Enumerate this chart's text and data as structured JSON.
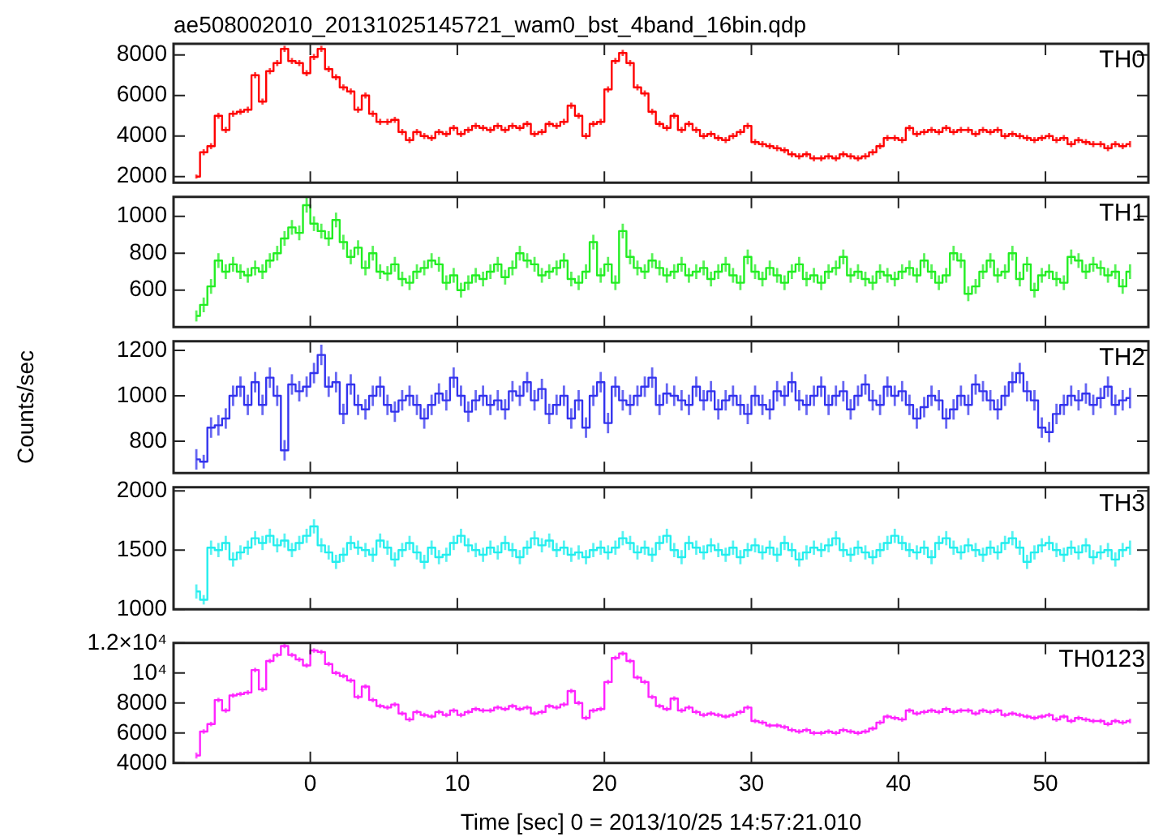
{
  "chart_data": [
    {
      "type": "step",
      "title": "ae508002010_20131025145721_wam0_bst_4band_16bin.qdp",
      "xlim": [
        -9.3,
        57
      ],
      "xticks": [
        0,
        10,
        20,
        30,
        40,
        50
      ],
      "ylim": [
        1700,
        8550
      ],
      "yticks": [
        2000,
        4000,
        6000,
        8000
      ],
      "tick_labels": "y",
      "x": [
        -7.75,
        -7.25,
        -6.75,
        -6.25,
        -5.75,
        -5.25,
        -4.75,
        -4.25,
        -3.75,
        -3.25,
        -2.75,
        -2.25,
        -1.75,
        -1.25,
        -0.75,
        -0.25,
        0.25,
        0.75,
        1.25,
        1.75,
        2.25,
        2.75,
        3.25,
        3.75,
        4.25,
        4.75,
        5.25,
        5.75,
        6.25,
        6.75,
        7.25,
        7.75,
        8.25,
        8.75,
        9.25,
        9.75,
        10.25,
        10.75,
        11.25,
        11.75,
        12.25,
        12.75,
        13.25,
        13.75,
        14.25,
        14.75,
        15.25,
        15.75,
        16.25,
        16.75,
        17.25,
        17.75,
        18.25,
        18.75,
        19.25,
        19.75,
        20.25,
        20.75,
        21.25,
        21.75,
        22.25,
        22.75,
        23.25,
        23.75,
        24.25,
        24.75,
        25.25,
        25.75,
        26.25,
        26.75,
        27.25,
        27.75,
        28.25,
        28.75,
        29.25,
        29.75,
        30.25,
        30.75,
        31.25,
        31.75,
        32.25,
        32.75,
        33.25,
        33.75,
        34.25,
        34.75,
        35.25,
        35.75,
        36.25,
        36.75,
        37.25,
        37.75,
        38.25,
        38.75,
        39.25,
        39.75,
        40.25,
        40.75,
        41.25,
        41.75,
        42.25,
        42.75,
        43.25,
        43.75,
        44.25,
        44.75,
        45.25,
        45.75,
        46.25,
        46.75,
        47.25,
        47.75,
        48.25,
        48.75,
        49.25,
        49.75,
        50.25,
        50.75,
        51.25,
        51.75,
        52.25,
        52.75,
        53.25,
        53.75,
        54.25,
        54.75,
        55.25,
        55.75
      ],
      "series": [
        {
          "name": "TH0",
          "color": "#ff0000",
          "values": [
            2000,
            3200,
            3500,
            5000,
            4300,
            5100,
            5200,
            5300,
            7000,
            5700,
            7200,
            7600,
            8300,
            7700,
            7600,
            7100,
            7900,
            8300,
            7300,
            6900,
            6400,
            6200,
            5300,
            6000,
            5100,
            4700,
            4700,
            4800,
            4200,
            3800,
            4200,
            4000,
            3900,
            4200,
            4100,
            4400,
            4100,
            4300,
            4500,
            4400,
            4300,
            4500,
            4300,
            4500,
            4400,
            4600,
            4100,
            4200,
            4600,
            4500,
            4700,
            5500,
            5000,
            4000,
            4600,
            4700,
            6300,
            7700,
            8100,
            7600,
            6400,
            6100,
            5200,
            4600,
            4400,
            5000,
            4300,
            4600,
            4300,
            4000,
            4100,
            3900,
            3800,
            4000,
            4200,
            4500,
            3700,
            3600,
            3500,
            3400,
            3300,
            3100,
            3000,
            3100,
            2900,
            2900,
            3000,
            2900,
            3100,
            3000,
            2900,
            3000,
            3200,
            3500,
            3900,
            3900,
            3800,
            4400,
            4100,
            4200,
            4300,
            4200,
            4400,
            4200,
            4300,
            4300,
            4100,
            4300,
            4200,
            4300,
            4000,
            4100,
            4000,
            3900,
            3800,
            3900,
            4000,
            3800,
            3900,
            3600,
            3800,
            3700,
            3600,
            3600,
            3400,
            3600,
            3500,
            3600
          ],
          "errors": [
            100,
            150,
            150,
            150,
            150,
            150,
            150,
            150,
            150,
            150,
            150,
            150,
            150,
            150,
            150,
            150,
            150,
            150,
            150,
            150,
            150,
            150,
            150,
            150,
            150,
            150,
            150,
            150,
            150,
            150,
            150,
            150,
            150,
            150,
            150,
            150,
            150,
            150,
            150,
            150,
            150,
            150,
            150,
            150,
            150,
            150,
            150,
            150,
            150,
            150,
            150,
            150,
            150,
            150,
            150,
            150,
            150,
            150,
            150,
            150,
            150,
            150,
            150,
            150,
            150,
            150,
            150,
            150,
            150,
            150,
            150,
            150,
            150,
            150,
            150,
            150,
            150,
            150,
            150,
            150,
            150,
            150,
            150,
            150,
            150,
            150,
            150,
            150,
            150,
            150,
            150,
            150,
            150,
            150,
            150,
            150,
            150,
            150,
            150,
            150,
            150,
            150,
            150,
            150,
            150,
            150,
            150,
            150,
            150,
            150,
            150,
            150,
            150,
            150,
            150,
            150,
            150,
            150,
            150,
            150,
            150,
            150,
            150,
            150,
            150,
            150,
            150,
            150
          ]
        }
      ]
    },
    {
      "type": "step",
      "xlim": [
        -9.3,
        57
      ],
      "xticks": [
        0,
        10,
        20,
        30,
        40,
        50
      ],
      "ylim": [
        400,
        1105
      ],
      "yticks": [
        600,
        800,
        1000
      ],
      "tick_labels": "y",
      "x": [
        -7.75,
        -7.25,
        -6.75,
        -6.25,
        -5.75,
        -5.25,
        -4.75,
        -4.25,
        -3.75,
        -3.25,
        -2.75,
        -2.25,
        -1.75,
        -1.25,
        -0.75,
        -0.25,
        0.25,
        0.75,
        1.25,
        1.75,
        2.25,
        2.75,
        3.25,
        3.75,
        4.25,
        4.75,
        5.25,
        5.75,
        6.25,
        6.75,
        7.25,
        7.75,
        8.25,
        8.75,
        9.25,
        9.75,
        10.25,
        10.75,
        11.25,
        11.75,
        12.25,
        12.75,
        13.25,
        13.75,
        14.25,
        14.75,
        15.25,
        15.75,
        16.25,
        16.75,
        17.25,
        17.75,
        18.25,
        18.75,
        19.25,
        19.75,
        20.25,
        20.75,
        21.25,
        21.75,
        22.25,
        22.75,
        23.25,
        23.75,
        24.25,
        24.75,
        25.25,
        25.75,
        26.25,
        26.75,
        27.25,
        27.75,
        28.25,
        28.75,
        29.25,
        29.75,
        30.25,
        30.75,
        31.25,
        31.75,
        32.25,
        32.75,
        33.25,
        33.75,
        34.25,
        34.75,
        35.25,
        35.75,
        36.25,
        36.75,
        37.25,
        37.75,
        38.25,
        38.75,
        39.25,
        39.75,
        40.25,
        40.75,
        41.25,
        41.75,
        42.25,
        42.75,
        43.25,
        43.75,
        44.25,
        44.75,
        45.25,
        45.75,
        46.25,
        46.75,
        47.25,
        47.75,
        48.25,
        48.75,
        49.25,
        49.75,
        50.25,
        50.75,
        51.25,
        51.75,
        52.25,
        52.75,
        53.25,
        53.75,
        54.25,
        54.75,
        55.25,
        55.75
      ],
      "series": [
        {
          "name": "TH1",
          "color": "#22ee22",
          "values": [
            460,
            520,
            620,
            760,
            700,
            740,
            700,
            680,
            720,
            700,
            760,
            800,
            880,
            940,
            910,
            1060,
            960,
            920,
            880,
            980,
            860,
            780,
            830,
            720,
            800,
            700,
            690,
            740,
            660,
            640,
            700,
            720,
            760,
            740,
            640,
            680,
            600,
            640,
            680,
            660,
            700,
            740,
            670,
            720,
            800,
            760,
            740,
            680,
            700,
            720,
            760,
            660,
            640,
            700,
            860,
            680,
            740,
            640,
            920,
            780,
            720,
            700,
            760,
            720,
            680,
            700,
            740,
            680,
            700,
            720,
            660,
            700,
            740,
            680,
            640,
            780,
            700,
            660,
            720,
            680,
            640,
            700,
            740,
            660,
            680,
            640,
            700,
            720,
            780,
            680,
            700,
            660,
            640,
            700,
            680,
            660,
            700,
            720,
            680,
            760,
            700,
            640,
            680,
            800,
            760,
            580,
            620,
            700,
            760,
            680,
            700,
            800,
            660,
            740,
            600,
            680,
            700,
            660,
            640,
            780,
            760,
            700,
            740,
            720,
            680,
            700,
            620,
            700
          ],
          "errors": [
            30,
            40,
            40,
            40,
            40,
            40,
            40,
            40,
            40,
            40,
            40,
            40,
            40,
            40,
            40,
            40,
            40,
            40,
            40,
            40,
            40,
            40,
            40,
            40,
            40,
            40,
            40,
            40,
            40,
            40,
            40,
            40,
            40,
            40,
            40,
            40,
            40,
            40,
            40,
            40,
            40,
            40,
            40,
            40,
            40,
            40,
            40,
            40,
            40,
            40,
            40,
            40,
            40,
            40,
            40,
            40,
            40,
            40,
            40,
            40,
            40,
            40,
            40,
            40,
            40,
            40,
            40,
            40,
            40,
            40,
            40,
            40,
            40,
            40,
            40,
            40,
            40,
            40,
            40,
            40,
            40,
            40,
            40,
            40,
            40,
            40,
            40,
            40,
            40,
            40,
            40,
            40,
            40,
            40,
            40,
            40,
            40,
            40,
            40,
            40,
            40,
            40,
            40,
            40,
            40,
            40,
            40,
            40,
            40,
            40,
            40,
            40,
            40,
            40,
            40,
            40,
            40,
            40,
            40,
            40,
            40,
            40,
            40,
            40,
            40,
            40,
            40,
            40
          ]
        }
      ]
    },
    {
      "type": "step",
      "ylabel": "Counts/sec",
      "xlim": [
        -9.3,
        57
      ],
      "xticks": [
        0,
        10,
        20,
        30,
        40,
        50
      ],
      "ylim": [
        660,
        1240
      ],
      "yticks": [
        800,
        1000,
        1200
      ],
      "tick_labels": "y",
      "x": [
        -7.75,
        -7.25,
        -6.75,
        -6.25,
        -5.75,
        -5.25,
        -4.75,
        -4.25,
        -3.75,
        -3.25,
        -2.75,
        -2.25,
        -1.75,
        -1.25,
        -0.75,
        -0.25,
        0.25,
        0.75,
        1.25,
        1.75,
        2.25,
        2.75,
        3.25,
        3.75,
        4.25,
        4.75,
        5.25,
        5.75,
        6.25,
        6.75,
        7.25,
        7.75,
        8.25,
        8.75,
        9.25,
        9.75,
        10.25,
        10.75,
        11.25,
        11.75,
        12.25,
        12.75,
        13.25,
        13.75,
        14.25,
        14.75,
        15.25,
        15.75,
        16.25,
        16.75,
        17.25,
        17.75,
        18.25,
        18.75,
        19.25,
        19.75,
        20.25,
        20.75,
        21.25,
        21.75,
        22.25,
        22.75,
        23.25,
        23.75,
        24.25,
        24.75,
        25.25,
        25.75,
        26.25,
        26.75,
        27.25,
        27.75,
        28.25,
        28.75,
        29.25,
        29.75,
        30.25,
        30.75,
        31.25,
        31.75,
        32.25,
        32.75,
        33.25,
        33.75,
        34.25,
        34.75,
        35.25,
        35.75,
        36.25,
        36.75,
        37.25,
        37.75,
        38.25,
        38.75,
        39.25,
        39.75,
        40.25,
        40.75,
        41.25,
        41.75,
        42.25,
        42.75,
        43.25,
        43.75,
        44.25,
        44.75,
        45.25,
        45.75,
        46.25,
        46.75,
        47.25,
        47.75,
        48.25,
        48.75,
        49.25,
        49.75,
        50.25,
        50.75,
        51.25,
        51.75,
        52.25,
        52.75,
        53.25,
        53.75,
        54.25,
        54.75,
        55.25,
        55.75
      ],
      "series": [
        {
          "name": "TH2",
          "color": "#3333ee",
          "values": [
            720,
            710,
            860,
            870,
            900,
            1000,
            1040,
            960,
            1060,
            960,
            1080,
            1000,
            760,
            1050,
            1020,
            1040,
            1100,
            1180,
            1040,
            1060,
            920,
            1050,
            960,
            940,
            1000,
            1040,
            960,
            930,
            980,
            1000,
            960,
            900,
            960,
            1010,
            980,
            1080,
            1000,
            930,
            980,
            1000,
            960,
            980,
            940,
            1020,
            1000,
            1060,
            980,
            1030,
            920,
            960,
            1000,
            900,
            980,
            860,
            1000,
            1060,
            880,
            1040,
            980,
            960,
            1000,
            1040,
            1080,
            960,
            1010,
            1000,
            980,
            960,
            1040,
            980,
            1020,
            940,
            980,
            1000,
            960,
            920,
            1000,
            960,
            940,
            1020,
            1000,
            1060,
            980,
            960,
            1000,
            1040,
            960,
            1000,
            1020,
            940,
            1000,
            1050,
            980,
            960,
            1040,
            1000,
            1020,
            960,
            900,
            950,
            1000,
            980,
            900,
            940,
            1000,
            960,
            1050,
            1020,
            980,
            940,
            1000,
            1060,
            1100,
            1020,
            980,
            860,
            840,
            920,
            960,
            1000,
            980,
            1010,
            960,
            990,
            1040,
            960,
            980,
            990
          ],
          "errors": [
            45,
            30,
            45,
            45,
            45,
            45,
            45,
            45,
            45,
            45,
            45,
            45,
            45,
            45,
            45,
            45,
            45,
            45,
            45,
            45,
            45,
            45,
            45,
            45,
            45,
            45,
            45,
            45,
            45,
            45,
            45,
            45,
            45,
            45,
            45,
            45,
            45,
            45,
            45,
            45,
            45,
            45,
            45,
            45,
            45,
            45,
            45,
            45,
            45,
            45,
            45,
            45,
            45,
            45,
            45,
            45,
            45,
            45,
            45,
            45,
            45,
            45,
            45,
            45,
            45,
            45,
            45,
            45,
            45,
            45,
            45,
            45,
            45,
            45,
            45,
            45,
            45,
            45,
            45,
            45,
            45,
            45,
            45,
            45,
            45,
            45,
            45,
            45,
            45,
            45,
            45,
            45,
            45,
            45,
            45,
            45,
            45,
            45,
            45,
            45,
            45,
            45,
            45,
            45,
            45,
            45,
            45,
            45,
            45,
            45,
            45,
            45,
            45,
            45,
            45,
            45,
            45,
            45,
            45,
            45,
            45,
            45,
            45,
            45,
            45,
            45,
            45,
            45
          ]
        }
      ]
    },
    {
      "type": "step",
      "xlim": [
        -9.3,
        57
      ],
      "xticks": [
        0,
        10,
        20,
        30,
        40,
        50
      ],
      "ylim": [
        1000,
        2030
      ],
      "yticks": [
        1000,
        1500,
        2000
      ],
      "tick_labels": "y",
      "x": [
        -7.75,
        -7.25,
        -6.75,
        -6.25,
        -5.75,
        -5.25,
        -4.75,
        -4.25,
        -3.75,
        -3.25,
        -2.75,
        -2.25,
        -1.75,
        -1.25,
        -0.75,
        -0.25,
        0.25,
        0.75,
        1.25,
        1.75,
        2.25,
        2.75,
        3.25,
        3.75,
        4.25,
        4.75,
        5.25,
        5.75,
        6.25,
        6.75,
        7.25,
        7.75,
        8.25,
        8.75,
        9.25,
        9.75,
        10.25,
        10.75,
        11.25,
        11.75,
        12.25,
        12.75,
        13.25,
        13.75,
        14.25,
        14.75,
        15.25,
        15.75,
        16.25,
        16.75,
        17.25,
        17.75,
        18.25,
        18.75,
        19.25,
        19.75,
        20.25,
        20.75,
        21.25,
        21.75,
        22.25,
        22.75,
        23.25,
        23.75,
        24.25,
        24.75,
        25.25,
        25.75,
        26.25,
        26.75,
        27.25,
        27.75,
        28.25,
        28.75,
        29.25,
        29.75,
        30.25,
        30.75,
        31.25,
        31.75,
        32.25,
        32.75,
        33.25,
        33.75,
        34.25,
        34.75,
        35.25,
        35.75,
        36.25,
        36.75,
        37.25,
        37.75,
        38.25,
        38.75,
        39.25,
        39.75,
        40.25,
        40.75,
        41.25,
        41.75,
        42.25,
        42.75,
        43.25,
        43.75,
        44.25,
        44.75,
        45.25,
        45.75,
        46.25,
        46.75,
        47.25,
        47.75,
        48.25,
        48.75,
        49.25,
        49.75,
        50.25,
        50.75,
        51.25,
        51.75,
        52.25,
        52.75,
        53.25,
        53.75,
        54.25,
        54.75,
        55.25,
        55.75
      ],
      "series": [
        {
          "name": "TH3",
          "color": "#22eeee",
          "values": [
            1150,
            1080,
            1520,
            1500,
            1560,
            1420,
            1480,
            1520,
            1600,
            1560,
            1620,
            1540,
            1580,
            1500,
            1560,
            1620,
            1700,
            1540,
            1480,
            1400,
            1460,
            1560,
            1520,
            1500,
            1460,
            1580,
            1520,
            1420,
            1500,
            1560,
            1480,
            1400,
            1520,
            1440,
            1460,
            1560,
            1620,
            1540,
            1500,
            1460,
            1520,
            1480,
            1560,
            1500,
            1440,
            1520,
            1600,
            1540,
            1580,
            1500,
            1520,
            1460,
            1480,
            1440,
            1500,
            1520,
            1480,
            1520,
            1600,
            1560,
            1480,
            1520,
            1460,
            1560,
            1620,
            1500,
            1440,
            1560,
            1520,
            1480,
            1540,
            1500,
            1460,
            1520,
            1440,
            1500,
            1540,
            1480,
            1520,
            1460,
            1560,
            1500,
            1420,
            1480,
            1520,
            1500,
            1540,
            1600,
            1500,
            1460,
            1520,
            1480,
            1440,
            1500,
            1560,
            1620,
            1560,
            1500,
            1480,
            1520,
            1440,
            1560,
            1600,
            1520,
            1480,
            1540,
            1500,
            1460,
            1520,
            1480,
            1560,
            1600,
            1520,
            1400,
            1480,
            1540,
            1560,
            1500,
            1460,
            1520,
            1480,
            1540,
            1440,
            1480,
            1500,
            1420,
            1500,
            1520
          ],
          "errors": [
            60,
            40,
            60,
            60,
            60,
            60,
            60,
            60,
            60,
            60,
            60,
            60,
            60,
            60,
            60,
            60,
            60,
            60,
            60,
            60,
            60,
            60,
            60,
            60,
            60,
            60,
            60,
            60,
            60,
            60,
            60,
            60,
            60,
            60,
            60,
            60,
            60,
            60,
            60,
            60,
            60,
            60,
            60,
            60,
            60,
            60,
            60,
            60,
            60,
            60,
            60,
            60,
            60,
            60,
            60,
            60,
            60,
            60,
            60,
            60,
            60,
            60,
            60,
            60,
            60,
            60,
            60,
            60,
            60,
            60,
            60,
            60,
            60,
            60,
            60,
            60,
            60,
            60,
            60,
            60,
            60,
            60,
            60,
            60,
            60,
            60,
            60,
            60,
            60,
            60,
            60,
            60,
            60,
            60,
            60,
            60,
            60,
            60,
            60,
            60,
            60,
            60,
            60,
            60,
            60,
            60,
            60,
            60,
            60,
            60,
            60,
            60,
            60,
            60,
            60,
            60,
            60,
            60,
            60,
            60,
            60,
            60,
            60,
            60,
            60,
            60,
            60,
            60
          ]
        }
      ]
    },
    {
      "type": "step",
      "xlabel": "Time [sec] 0 = 2013/10/25 14:57:21.010",
      "xlim": [
        -9.3,
        57
      ],
      "xticks": [
        0,
        10,
        20,
        30,
        40,
        50
      ],
      "ylim": [
        4000,
        12000
      ],
      "yticks": [
        4000,
        6000,
        8000,
        {
          "value": 10000,
          "label": "10⁴"
        },
        {
          "value": 12000,
          "label": "1.2×10⁴"
        }
      ],
      "x": [
        -7.75,
        -7.25,
        -6.75,
        -6.25,
        -5.75,
        -5.25,
        -4.75,
        -4.25,
        -3.75,
        -3.25,
        -2.75,
        -2.25,
        -1.75,
        -1.25,
        -0.75,
        -0.25,
        0.25,
        0.75,
        1.25,
        1.75,
        2.25,
        2.75,
        3.25,
        3.75,
        4.25,
        4.75,
        5.25,
        5.75,
        6.25,
        6.75,
        7.25,
        7.75,
        8.25,
        8.75,
        9.25,
        9.75,
        10.25,
        10.75,
        11.25,
        11.75,
        12.25,
        12.75,
        13.25,
        13.75,
        14.25,
        14.75,
        15.25,
        15.75,
        16.25,
        16.75,
        17.25,
        17.75,
        18.25,
        18.75,
        19.25,
        19.75,
        20.25,
        20.75,
        21.25,
        21.75,
        22.25,
        22.75,
        23.25,
        23.75,
        24.25,
        24.75,
        25.25,
        25.75,
        26.25,
        26.75,
        27.25,
        27.75,
        28.25,
        28.75,
        29.25,
        29.75,
        30.25,
        30.75,
        31.25,
        31.75,
        32.25,
        32.75,
        33.25,
        33.75,
        34.25,
        34.75,
        35.25,
        35.75,
        36.25,
        36.75,
        37.25,
        37.75,
        38.25,
        38.75,
        39.25,
        39.75,
        40.25,
        40.75,
        41.25,
        41.75,
        42.25,
        42.75,
        43.25,
        43.75,
        44.25,
        44.75,
        45.25,
        45.75,
        46.25,
        46.75,
        47.25,
        47.75,
        48.25,
        48.75,
        49.25,
        49.75,
        50.25,
        50.75,
        51.25,
        51.75,
        52.25,
        52.75,
        53.25,
        53.75,
        54.25,
        54.75,
        55.25,
        55.75
      ],
      "series": [
        {
          "name": "TH0123",
          "color": "#ff22ff",
          "values": [
            4500,
            6100,
            6600,
            8200,
            7500,
            8500,
            8600,
            8700,
            10200,
            8900,
            10800,
            11200,
            11800,
            11200,
            10900,
            10500,
            11500,
            11400,
            10600,
            10000,
            9800,
            9500,
            8400,
            9100,
            8200,
            7800,
            7700,
            7900,
            7300,
            6900,
            7400,
            7200,
            7100,
            7400,
            7200,
            7500,
            7200,
            7400,
            7600,
            7500,
            7500,
            7700,
            7600,
            7800,
            7600,
            7700,
            7300,
            7400,
            7800,
            7700,
            7900,
            8800,
            8000,
            7000,
            7500,
            7600,
            9400,
            11000,
            11300,
            10800,
            9700,
            9400,
            8400,
            7800,
            7600,
            8300,
            7500,
            7700,
            7400,
            7200,
            7300,
            7200,
            7100,
            7200,
            7400,
            7700,
            6800,
            6700,
            6500,
            6500,
            6400,
            6200,
            6100,
            6200,
            6000,
            6000,
            6100,
            6000,
            6200,
            6100,
            6000,
            6100,
            6300,
            6700,
            7100,
            7000,
            6900,
            7500,
            7300,
            7400,
            7500,
            7400,
            7600,
            7400,
            7500,
            7500,
            7300,
            7500,
            7400,
            7500,
            7200,
            7300,
            7200,
            7100,
            7000,
            7100,
            7200,
            6900,
            7100,
            6800,
            7000,
            6900,
            6800,
            6800,
            6600,
            6800,
            6700,
            6800
          ],
          "errors": [
            200,
            150,
            150,
            150,
            150,
            150,
            150,
            150,
            150,
            150,
            150,
            150,
            150,
            150,
            150,
            150,
            150,
            150,
            150,
            150,
            150,
            150,
            150,
            150,
            150,
            150,
            150,
            150,
            150,
            150,
            150,
            150,
            150,
            150,
            150,
            150,
            150,
            150,
            150,
            150,
            150,
            150,
            150,
            150,
            150,
            150,
            150,
            150,
            150,
            150,
            150,
            150,
            150,
            150,
            150,
            150,
            150,
            150,
            150,
            150,
            150,
            150,
            150,
            150,
            150,
            150,
            150,
            150,
            150,
            150,
            150,
            150,
            150,
            150,
            150,
            150,
            150,
            150,
            150,
            150,
            150,
            150,
            150,
            150,
            150,
            150,
            150,
            150,
            150,
            150,
            150,
            150,
            150,
            150,
            150,
            150,
            150,
            150,
            150,
            150,
            150,
            150,
            150,
            150,
            150,
            150,
            150,
            150,
            150,
            150,
            150,
            150,
            150,
            150,
            150,
            150,
            150,
            150,
            150,
            150,
            150,
            150,
            150,
            150,
            150,
            150,
            150,
            150
          ]
        }
      ]
    }
  ]
}
